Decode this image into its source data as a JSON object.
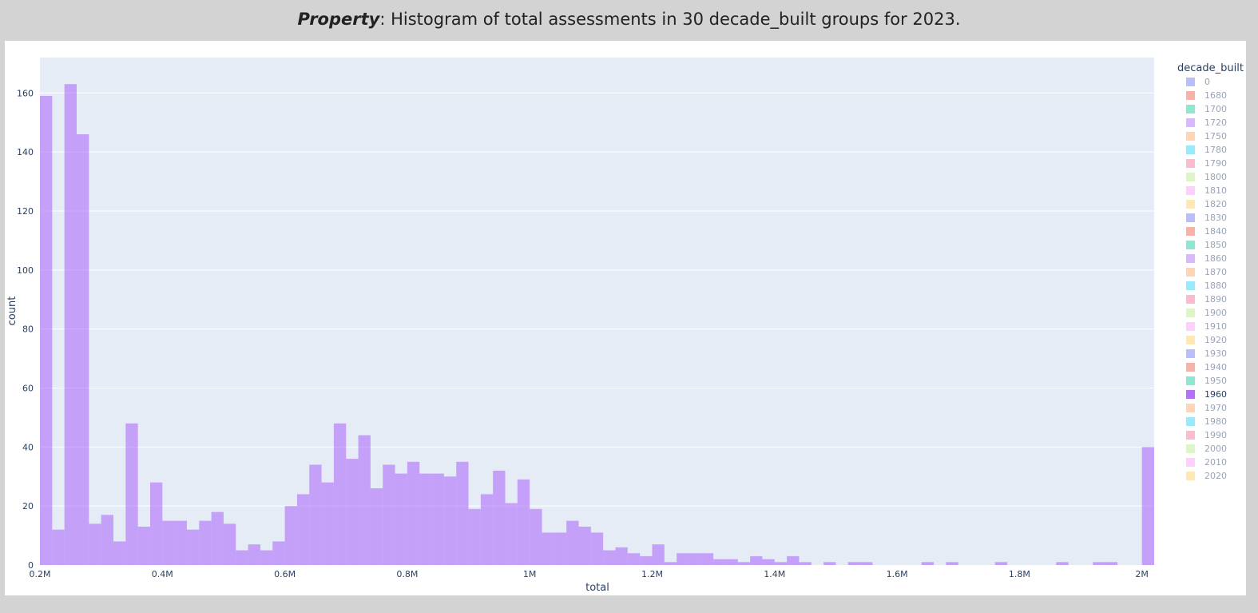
{
  "title": {
    "emphasis": "Property",
    "rest": ": Histogram of total assessments in 30 decade_built groups for 2023."
  },
  "chart_data": {
    "type": "bar",
    "xlabel": "total",
    "ylabel": "count",
    "xlim": [
      200000,
      2020000
    ],
    "ylim": [
      0,
      172
    ],
    "bin_width": 20000,
    "x_ticks": [
      {
        "value": 200000,
        "label": "0.2M"
      },
      {
        "value": 400000,
        "label": "0.4M"
      },
      {
        "value": 600000,
        "label": "0.6M"
      },
      {
        "value": 800000,
        "label": "0.8M"
      },
      {
        "value": 1000000,
        "label": "1M"
      },
      {
        "value": 1200000,
        "label": "1.2M"
      },
      {
        "value": 1400000,
        "label": "1.4M"
      },
      {
        "value": 1600000,
        "label": "1.6M"
      },
      {
        "value": 1800000,
        "label": "1.8M"
      },
      {
        "value": 2000000,
        "label": "2M"
      }
    ],
    "y_ticks": [
      0,
      20,
      40,
      60,
      80,
      100,
      120,
      140,
      160
    ],
    "grid": true,
    "bar_color": "#ab63fa",
    "bins_start": [
      200000,
      220000,
      240000,
      260000,
      280000,
      300000,
      320000,
      340000,
      360000,
      380000,
      400000,
      420000,
      440000,
      460000,
      480000,
      500000,
      520000,
      540000,
      560000,
      580000,
      600000,
      620000,
      640000,
      660000,
      680000,
      700000,
      720000,
      740000,
      760000,
      780000,
      800000,
      820000,
      840000,
      860000,
      880000,
      900000,
      920000,
      940000,
      960000,
      980000,
      1000000,
      1020000,
      1040000,
      1060000,
      1080000,
      1100000,
      1120000,
      1140000,
      1160000,
      1180000,
      1200000,
      1220000,
      1240000,
      1260000,
      1280000,
      1300000,
      1320000,
      1340000,
      1360000,
      1380000,
      1400000,
      1420000,
      1440000,
      1460000,
      1480000,
      1500000,
      1520000,
      1540000,
      1560000,
      1580000,
      1600000,
      1620000,
      1640000,
      1660000,
      1680000,
      1700000,
      1720000,
      1740000,
      1760000,
      1780000,
      1800000,
      1820000,
      1840000,
      1860000,
      1880000,
      1900000,
      1920000,
      1940000,
      1960000,
      1980000,
      2000000
    ],
    "counts": [
      159,
      12,
      163,
      146,
      14,
      17,
      8,
      48,
      13,
      28,
      15,
      15,
      12,
      15,
      18,
      14,
      5,
      7,
      5,
      8,
      20,
      24,
      34,
      28,
      48,
      36,
      44,
      26,
      34,
      31,
      35,
      31,
      31,
      30,
      35,
      19,
      24,
      32,
      21,
      29,
      19,
      11,
      11,
      15,
      13,
      11,
      5,
      6,
      4,
      3,
      7,
      1,
      4,
      4,
      4,
      2,
      2,
      1,
      3,
      2,
      1,
      3,
      1,
      0,
      1,
      0,
      1,
      1,
      0,
      0,
      0,
      0,
      1,
      0,
      1,
      0,
      0,
      0,
      1,
      0,
      0,
      0,
      0,
      1,
      0,
      0,
      1,
      1,
      0,
      0,
      40
    ],
    "legend": {
      "title": "decade_built",
      "placement": "right",
      "active": "1960",
      "items": [
        {
          "label": "0",
          "color": "#636efa"
        },
        {
          "label": "1680",
          "color": "#ef553b"
        },
        {
          "label": "1700",
          "color": "#00cc96"
        },
        {
          "label": "1720",
          "color": "#ab63fa"
        },
        {
          "label": "1750",
          "color": "#ffa15a"
        },
        {
          "label": "1780",
          "color": "#19d3f3"
        },
        {
          "label": "1790",
          "color": "#ff6692"
        },
        {
          "label": "1800",
          "color": "#b6e880"
        },
        {
          "label": "1810",
          "color": "#ff97ff"
        },
        {
          "label": "1820",
          "color": "#fecb52"
        },
        {
          "label": "1830",
          "color": "#636efa"
        },
        {
          "label": "1840",
          "color": "#ef553b"
        },
        {
          "label": "1850",
          "color": "#00cc96"
        },
        {
          "label": "1860",
          "color": "#ab63fa"
        },
        {
          "label": "1870",
          "color": "#ffa15a"
        },
        {
          "label": "1880",
          "color": "#19d3f3"
        },
        {
          "label": "1890",
          "color": "#ff6692"
        },
        {
          "label": "1900",
          "color": "#b6e880"
        },
        {
          "label": "1910",
          "color": "#ff97ff"
        },
        {
          "label": "1920",
          "color": "#fecb52"
        },
        {
          "label": "1930",
          "color": "#636efa"
        },
        {
          "label": "1940",
          "color": "#ef553b"
        },
        {
          "label": "1950",
          "color": "#00cc96"
        },
        {
          "label": "1960",
          "color": "#ab63fa"
        },
        {
          "label": "1970",
          "color": "#ffa15a"
        },
        {
          "label": "1980",
          "color": "#19d3f3"
        },
        {
          "label": "1990",
          "color": "#ff6692"
        },
        {
          "label": "2000",
          "color": "#b6e880"
        },
        {
          "label": "2010",
          "color": "#ff97ff"
        },
        {
          "label": "2020",
          "color": "#fecb52"
        }
      ]
    }
  }
}
